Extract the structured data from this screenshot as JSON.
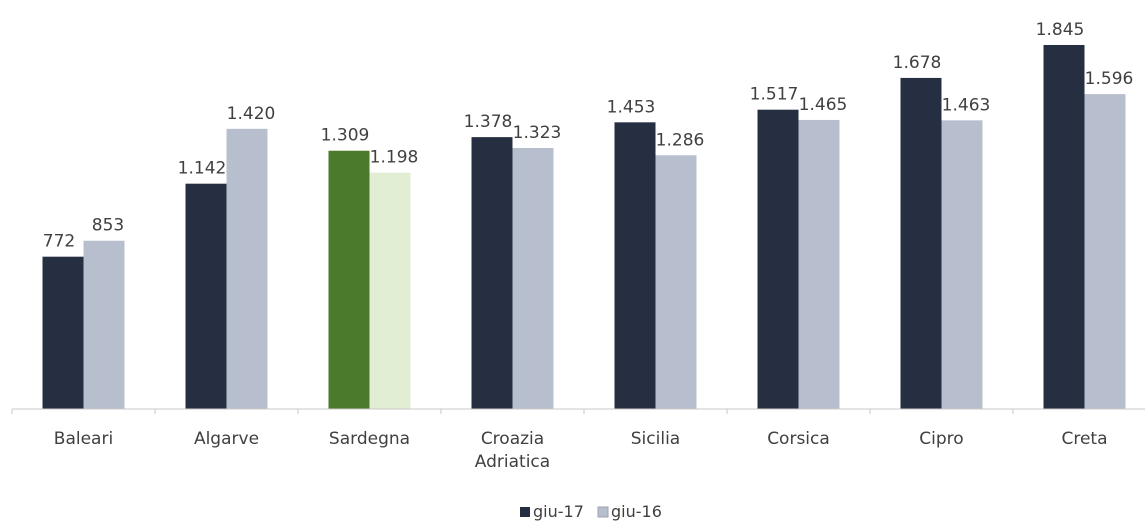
{
  "chart_data": {
    "type": "bar",
    "categories": [
      [
        "Baleari"
      ],
      [
        "Algarve"
      ],
      [
        "Sardegna"
      ],
      [
        "Croazia",
        "Adriatica"
      ],
      [
        "Sicilia"
      ],
      [
        "Corsica"
      ],
      [
        "Cipro"
      ],
      [
        "Creta"
      ]
    ],
    "series": [
      {
        "name": "giu-17",
        "values": [
          772,
          1142,
          1309,
          1378,
          1453,
          1517,
          1678,
          1845
        ],
        "labels": [
          "772",
          "1.142",
          "1.309",
          "1.378",
          "1.453",
          "1.517",
          "1.678",
          "1.845"
        ],
        "color": "#262f41"
      },
      {
        "name": "giu-16",
        "values": [
          853,
          1420,
          1198,
          1323,
          1286,
          1465,
          1463,
          1596
        ],
        "labels": [
          "853",
          "1.420",
          "1.198",
          "1.323",
          "1.286",
          "1.465",
          "1.463",
          "1.596"
        ],
        "color": "#b7bfce"
      }
    ],
    "highlight": {
      "category_index": 2,
      "colors": [
        "#4a7a2a",
        "#e1eed3"
      ]
    },
    "ylim": [
      0,
      2000
    ],
    "grid": false,
    "legend_position": "bottom"
  }
}
